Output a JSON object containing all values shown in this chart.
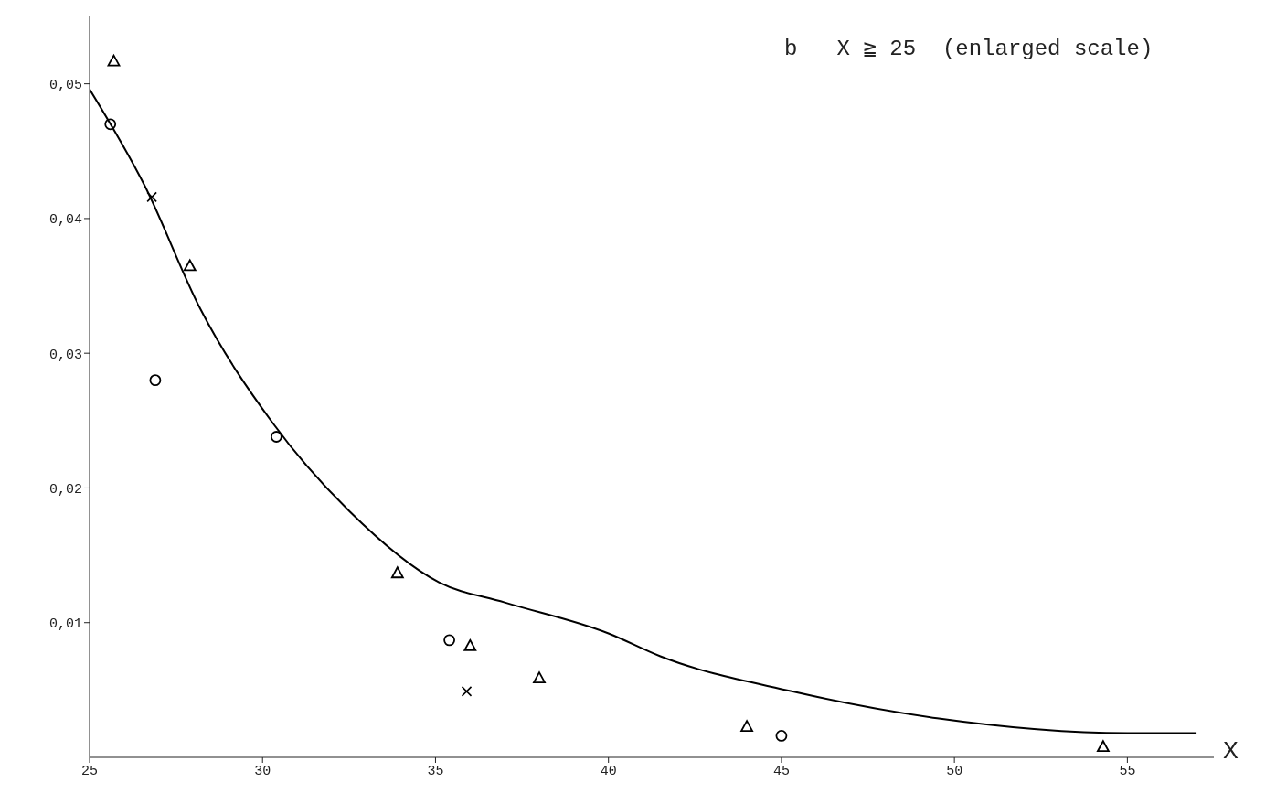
{
  "chart_data": {
    "type": "scatter",
    "title": "b   X ≧ 25  (enlarged scale)",
    "xlabel": "X",
    "xlim": [
      25,
      57.5
    ],
    "xticks": [
      25,
      30,
      35,
      40,
      45,
      50,
      55
    ],
    "ylim": [
      0,
      0.055
    ],
    "yticks": [
      {
        "value": 0.01,
        "label": "0,01"
      },
      {
        "value": 0.02,
        "label": "0,02"
      },
      {
        "value": 0.03,
        "label": "0,03"
      },
      {
        "value": 0.04,
        "label": "0,04"
      },
      {
        "value": 0.05,
        "label": "0,05"
      }
    ],
    "series": [
      {
        "marker": "triangle",
        "color": "#000000",
        "x": [
          25.7,
          27.9,
          33.9,
          36.0,
          38.0,
          44.0,
          54.3
        ],
        "values": [
          0.0517,
          0.0365,
          0.0137,
          0.0083,
          0.0059,
          0.0023,
          0.0008
        ]
      },
      {
        "marker": "circle",
        "color": "#000000",
        "x": [
          25.6,
          26.9,
          30.4,
          35.4,
          45.0
        ],
        "values": [
          0.047,
          0.028,
          0.0238,
          0.0087,
          0.0016
        ]
      },
      {
        "marker": "cross",
        "color": "#000000",
        "x": [
          26.8,
          35.9
        ],
        "values": [
          0.0416,
          0.0049
        ]
      },
      {
        "type": "line",
        "marker": "none",
        "line_style": "solid",
        "color": "#000000",
        "x": [
          25,
          26.6,
          28.2,
          30.3,
          32.5,
          35.1,
          37,
          40,
          41.5,
          45.3,
          49.5,
          55,
          57
        ],
        "values": [
          0.0496,
          0.0424,
          0.0333,
          0.0248,
          0.0183,
          0.013,
          0.0115,
          0.0092,
          0.0075,
          0.0049,
          0.0029,
          0.0018,
          0.0018
        ]
      }
    ]
  }
}
